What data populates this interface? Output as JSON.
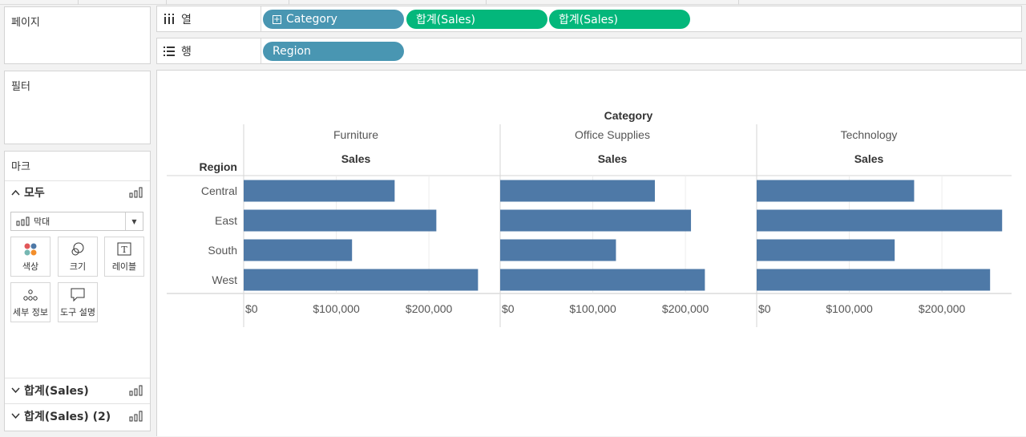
{
  "shelves": {
    "pages_title": "페이지",
    "filters_title": "필터",
    "columns": {
      "label": "열",
      "pills": [
        {
          "text": "Category",
          "kind": "dimension",
          "color": "#4996b2"
        },
        {
          "text": "합계(Sales)",
          "kind": "measure",
          "color": "#03b77b"
        },
        {
          "text": "합계(Sales)",
          "kind": "measure",
          "color": "#03b77b"
        }
      ]
    },
    "rows": {
      "label": "행",
      "pills": [
        {
          "text": "Region",
          "kind": "dimension",
          "color": "#4996b2"
        }
      ]
    }
  },
  "marks": {
    "title": "마크",
    "all_label": "모두",
    "mark_type": "막대",
    "buttons": {
      "color": "색상",
      "size": "크기",
      "label": "레이블",
      "detail": "세부 정보",
      "tooltip": "도구 설명"
    },
    "sections": [
      "합계(Sales)",
      "합계(Sales) (2)"
    ]
  },
  "chart_data": {
    "type": "bar",
    "column_header_title": "Category",
    "row_header_title": "Region",
    "measure_label": "Sales",
    "categories": [
      "Central",
      "East",
      "South",
      "West"
    ],
    "panes": [
      {
        "name": "Furniture",
        "values": [
          163000,
          208000,
          117000,
          253000
        ]
      },
      {
        "name": "Office Supplies",
        "values": [
          167000,
          206000,
          125000,
          221000
        ]
      },
      {
        "name": "Technology",
        "values": [
          170000,
          265000,
          149000,
          252000
        ]
      }
    ],
    "axis": {
      "min": 0,
      "max": 270000,
      "ticks": [
        0,
        100000,
        200000
      ],
      "tick_labels": [
        "$0",
        "$100,000",
        "$200,000"
      ]
    },
    "bar_color": "#4e79a7",
    "grid": true
  }
}
